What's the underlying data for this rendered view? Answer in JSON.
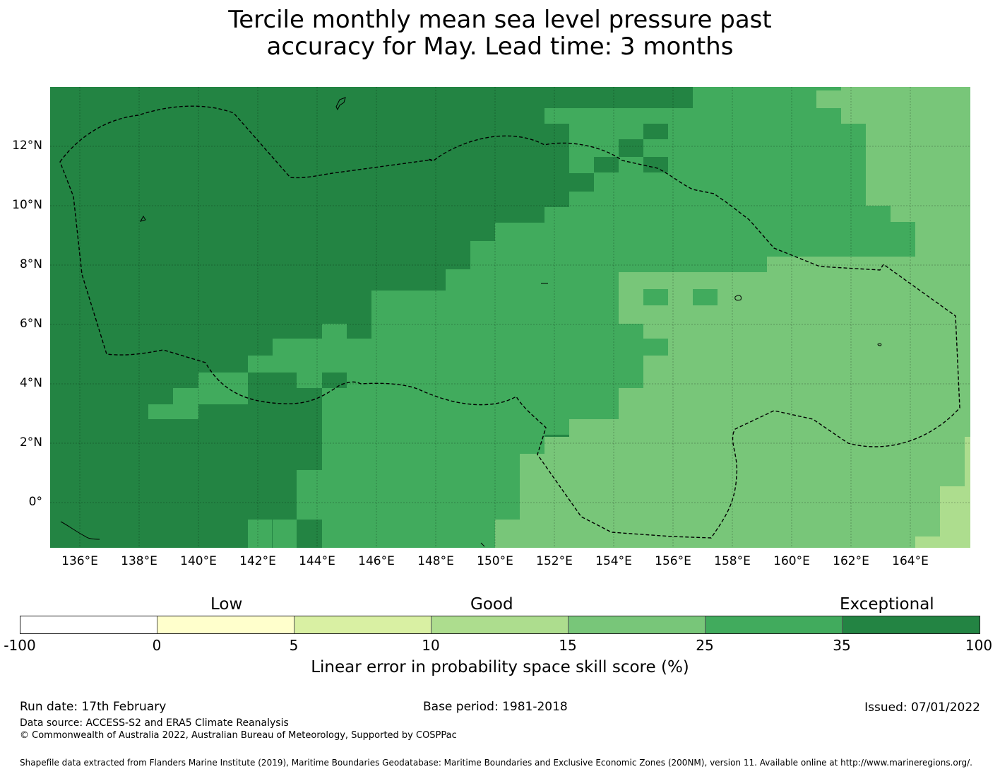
{
  "title": {
    "line1": "Tercile monthly mean sea level pressure past",
    "line2": "accuracy for May. Lead time: 3 months"
  },
  "map": {
    "x_ticks": [
      "136°E",
      "138°E",
      "140°E",
      "142°E",
      "144°E",
      "146°E",
      "148°E",
      "150°E",
      "152°E",
      "154°E",
      "156°E",
      "158°E",
      "160°E",
      "162°E",
      "164°E"
    ],
    "x_tick_values": [
      136,
      138,
      140,
      142,
      144,
      146,
      148,
      150,
      152,
      154,
      156,
      158,
      160,
      162,
      164
    ],
    "y_ticks": [
      "12°N",
      "10°N",
      "8°N",
      "6°N",
      "4°N",
      "2°N",
      "0°"
    ],
    "y_tick_values": [
      12,
      10,
      8,
      6,
      4,
      2,
      0
    ],
    "lon_range": [
      135,
      166
    ],
    "lat_range": [
      -1.5,
      14
    ]
  },
  "colorbar": {
    "categories": [
      "Low",
      "Good",
      "Exceptional"
    ],
    "tick_labels": [
      "-100",
      "0",
      "5",
      "10",
      "15",
      "25",
      "35",
      "100"
    ],
    "colors": [
      "#ffffff",
      "#ffffcc",
      "#d9f0a3",
      "#addd8e",
      "#78c679",
      "#41ab5d",
      "#238443"
    ],
    "label": "Linear error in probability space skill score (%)"
  },
  "footer": {
    "run_date": "Run date: 17th February",
    "base_period": "Base period: 1981-2018",
    "issued": "Issued: 07/01/2022",
    "data_source": "Data source: ACCESS-S2 and ERA5 Climate Reanalysis",
    "copyright": "© Commonwealth of Australia 2022, Australian Bureau of Meteorology, Supported by COSPPac",
    "shapefile": "Shapefile data extracted from Flanders Marine Institute (2019), Maritime Boundaries Geodatabase: Maritime Boundaries and Exclusive Economic Zones (200NM), version 11. Available online at http://www.marineregions.org/."
  }
}
